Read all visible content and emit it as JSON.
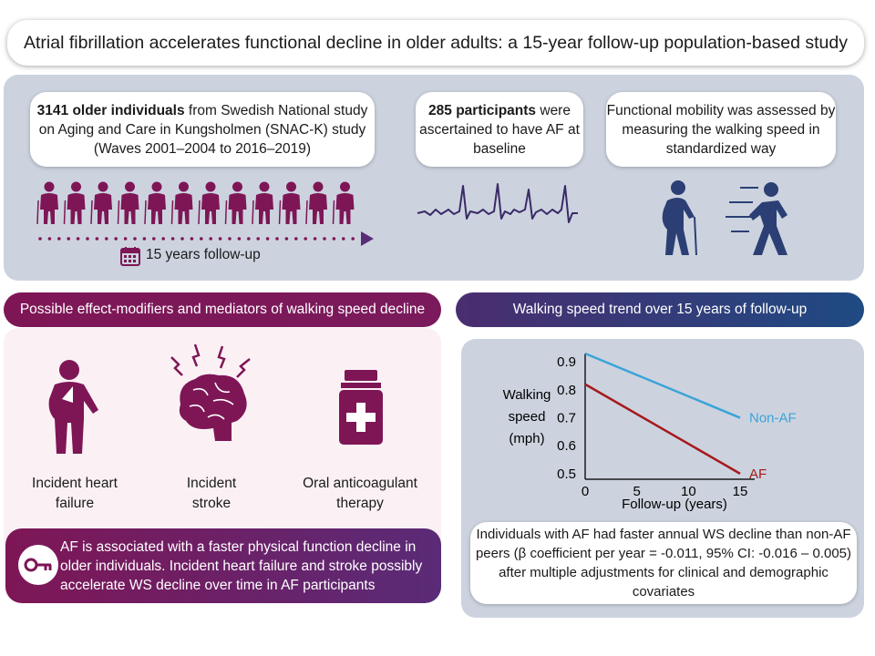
{
  "title": "Atrial fibrillation accelerates functional decline in older adults: a 15-year follow-up population-based study",
  "top": {
    "card1": {
      "bold": "3141 older individuals",
      "rest": " from Swedish National study on Aging and Care in Kungsholmen (SNAC-K) study (Waves 2001–2004 to 2016–2019)"
    },
    "followup_label": "15 years follow-up",
    "card2": {
      "bold": "285 participants",
      "rest": " were ascertained to have AF at baseline"
    },
    "card3": "Functional mobility was assessed by measuring the walking speed in standardized way"
  },
  "left": {
    "banner": "Possible effect-modifiers and mediators of walking speed decline",
    "items": [
      {
        "label": "Incident heart failure",
        "icon": "heart-failure-person-icon"
      },
      {
        "label": "Incident stroke",
        "icon": "brain-icon"
      },
      {
        "label": "Oral anticoagulant therapy",
        "icon": "medicine-bottle-icon"
      }
    ],
    "key_text": "AF is associated with a faster physical function decline in older individuals. Incident heart failure and stroke possibly accelerate WS decline over time in AF participants"
  },
  "right": {
    "banner": "Walking speed trend over 15 years of follow-up",
    "summary": "Individuals with AF had faster annual WS decline than non-AF peers (β coefficient per year = -0.011, 95% CI: -0.016 – 0.005) after multiple adjustments for clinical and demographic covariates"
  },
  "colors": {
    "purple": "#7e1656",
    "navy": "#2b3f74",
    "nonaf": "#3ba3d8",
    "af": "#a7191c"
  },
  "chart_data": {
    "type": "line",
    "ylabel": "Walking speed (mph)",
    "xlabel": "Follow-up (years)",
    "x_ticks": [
      0,
      5,
      10,
      15
    ],
    "y_ticks": [
      0.5,
      0.6,
      0.7,
      0.8,
      0.9
    ],
    "xlim": [
      0,
      15
    ],
    "ylim": [
      0.48,
      0.93
    ],
    "series": [
      {
        "name": "Non-AF",
        "x": [
          0,
          15
        ],
        "values": [
          0.93,
          0.7
        ],
        "color": "#3ba3d8"
      },
      {
        "name": "AF",
        "x": [
          0,
          15
        ],
        "values": [
          0.82,
          0.5
        ],
        "color": "#a7191c"
      }
    ]
  }
}
